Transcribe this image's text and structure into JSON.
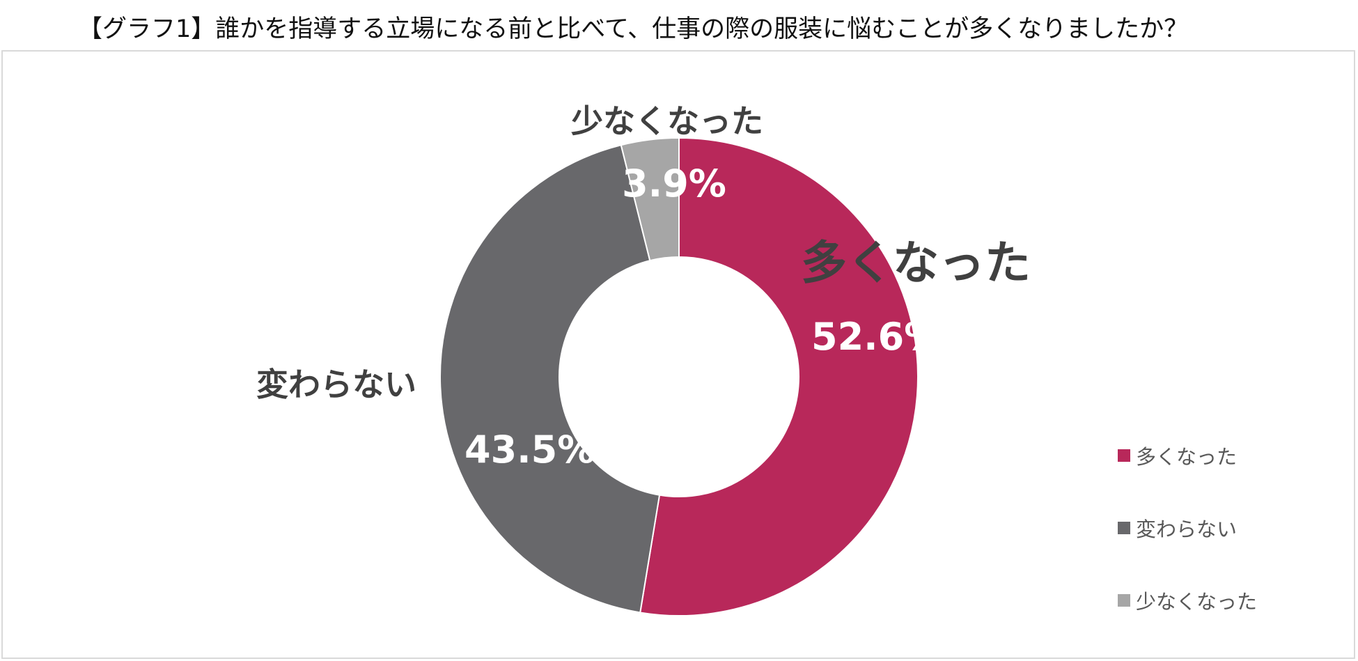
{
  "title": "【グラフ1】誰かを指導する立場になる前と比べて、仕事の際の服装に悩むことが多くなりましたか？",
  "chart_data": {
    "type": "pie",
    "donut": true,
    "title": "【グラフ1】誰かを指導する立場になる前と比べて、仕事の際の服装に悩むことが多くなりましたか？",
    "categories": [
      "多くなった",
      "変わらない",
      "少なくなった"
    ],
    "values": [
      52.6,
      43.5,
      3.9
    ],
    "value_labels": [
      "52.6%",
      "43.5%",
      "3.9%"
    ],
    "colors": [
      "#b8285a",
      "#68686b",
      "#a6a6a6"
    ],
    "legend": {
      "position": "right",
      "items": [
        "多くなった",
        "変わらない",
        "少なくなった"
      ]
    }
  }
}
